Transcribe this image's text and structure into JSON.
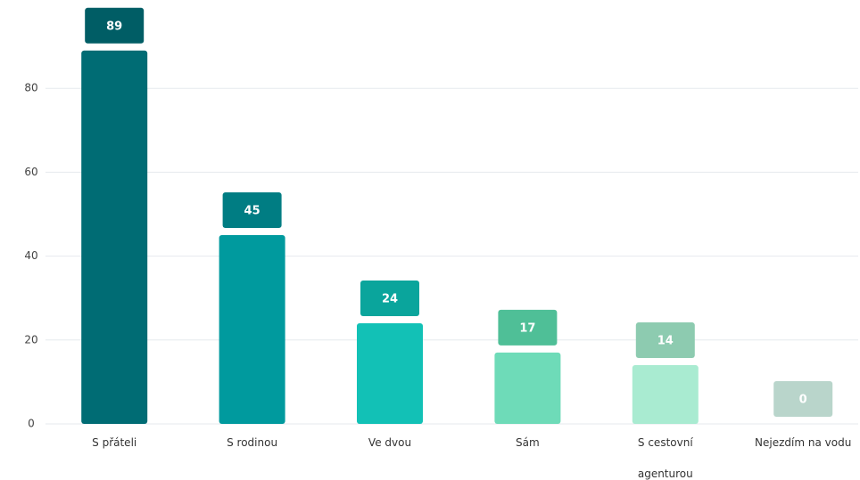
{
  "chart_data": {
    "type": "bar",
    "categories": [
      "S přáteli",
      "S rodinou",
      "Ve dvou",
      "Sám",
      "S cestovní agenturou",
      "Nejezdím na vodu"
    ],
    "values": [
      89,
      45,
      24,
      17,
      14,
      0
    ],
    "colors": [
      "#006c74",
      "#009a9e",
      "#12c1b6",
      "#6edbb8",
      "#a9ebd1",
      "#c9e3da"
    ],
    "label_colors": [
      "#005d65",
      "#007d83",
      "#0aa59c",
      "#4fbf97",
      "#8dcbb0",
      "#b9d5cb"
    ],
    "ylim": [
      0,
      100
    ],
    "yticks": [
      0,
      20,
      40,
      60,
      80
    ],
    "grid": true
  }
}
